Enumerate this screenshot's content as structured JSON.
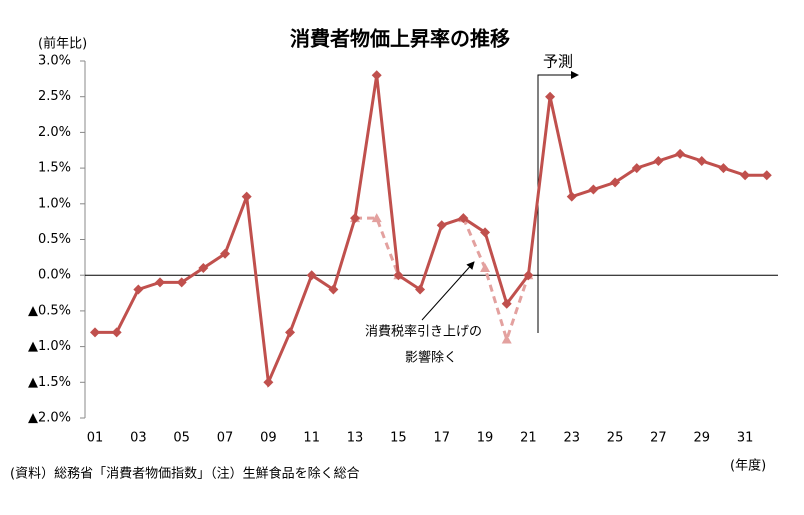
{
  "chart_data": {
    "type": "line",
    "title": "消費者物価上昇率の推移",
    "y_unit": "(前年比)",
    "x_unit": "(年度)",
    "source": "(資料）総務省「消費者物価指数」（注）生鮮食品を除く総合",
    "forecast_label": "予測",
    "annotation": [
      "消費税率引き上げの",
      "影響除く"
    ],
    "categories": [
      "01",
      null,
      "03",
      null,
      "05",
      null,
      "07",
      null,
      "09",
      null,
      "11",
      null,
      "13",
      null,
      "15",
      null,
      "17",
      null,
      "19",
      null,
      "21",
      null,
      "23",
      null,
      "25",
      null,
      "27",
      null,
      "29",
      null,
      "31",
      null
    ],
    "series": [
      {
        "color": "#c0504d",
        "style": "solid",
        "marker": "diamond",
        "values": [
          -0.8,
          -0.8,
          -0.2,
          -0.1,
          -0.1,
          0.1,
          0.3,
          1.1,
          -1.5,
          -0.8,
          0.0,
          -0.2,
          0.8,
          2.8,
          0.0,
          -0.2,
          0.7,
          0.8,
          0.6,
          -0.4,
          0.0,
          2.5,
          1.1,
          1.2,
          1.3,
          1.5,
          1.6,
          1.7,
          1.6,
          1.5,
          1.4,
          1.4
        ]
      },
      {
        "color": "#e3a19f",
        "style": "dashed",
        "marker": "triangle",
        "values": [
          null,
          null,
          null,
          null,
          null,
          null,
          null,
          null,
          null,
          null,
          null,
          null,
          0.8,
          0.8,
          0.0,
          null,
          null,
          0.8,
          0.1,
          -0.9,
          0.0,
          null,
          null,
          null,
          null,
          null,
          null,
          null,
          null,
          null,
          null,
          null
        ]
      }
    ],
    "ylim": [
      -2.0,
      3.0
    ],
    "yticks": [
      {
        "value": 3.0,
        "label": "3.0%"
      },
      {
        "value": 2.5,
        "label": "2.5%"
      },
      {
        "value": 2.0,
        "label": "2.0%"
      },
      {
        "value": 1.5,
        "label": "1.5%"
      },
      {
        "value": 1.0,
        "label": "1.0%"
      },
      {
        "value": 0.5,
        "label": "0.5%"
      },
      {
        "value": 0.0,
        "label": "0.0%"
      },
      {
        "value": -0.5,
        "label": "▲0.5%"
      },
      {
        "value": -1.0,
        "label": "▲1.0%"
      },
      {
        "value": -1.5,
        "label": "▲1.5%"
      },
      {
        "value": -2.0,
        "label": "▲2.0%"
      }
    ]
  }
}
